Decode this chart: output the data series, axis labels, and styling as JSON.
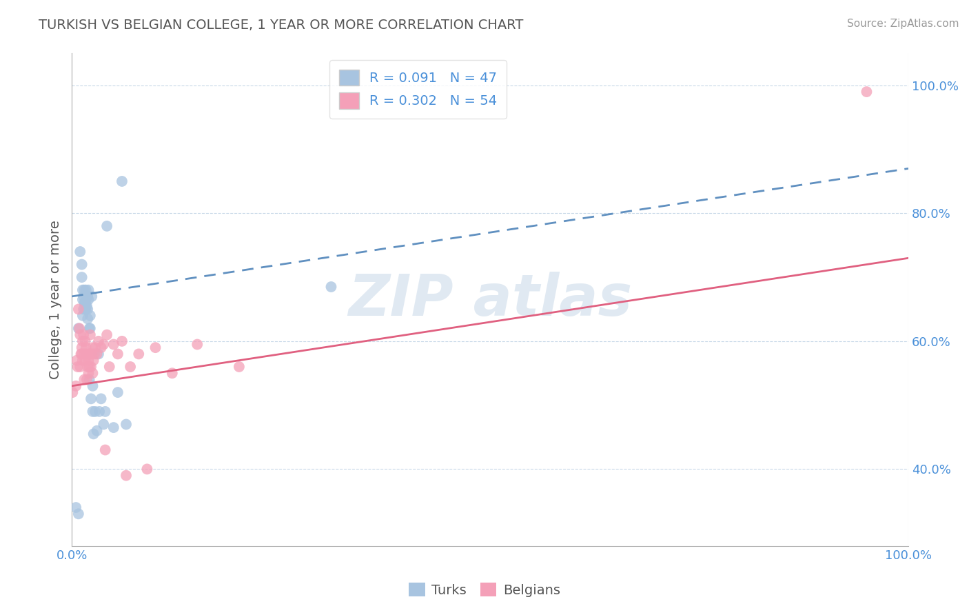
{
  "title": "TURKISH VS BELGIAN COLLEGE, 1 YEAR OR MORE CORRELATION CHART",
  "source": "Source: ZipAtlas.com",
  "ylabel_label": "College, 1 year or more",
  "turks_R": 0.091,
  "turks_N": 47,
  "belgians_R": 0.302,
  "belgians_N": 54,
  "turks_color": "#a8c4e0",
  "belgians_color": "#f4a0b8",
  "turks_line_color": "#6090c0",
  "belgians_line_color": "#e06080",
  "grid_color": "#c8d8e8",
  "turks_line_style": "dashed",
  "belgians_line_style": "solid",
  "turks_line_y0": 0.67,
  "turks_line_y1": 0.87,
  "belgians_line_y0": 0.53,
  "belgians_line_y1": 0.73,
  "turks_x": [
    0.005,
    0.008,
    0.008,
    0.01,
    0.012,
    0.012,
    0.013,
    0.013,
    0.013,
    0.014,
    0.014,
    0.015,
    0.015,
    0.016,
    0.016,
    0.017,
    0.017,
    0.017,
    0.018,
    0.018,
    0.019,
    0.019,
    0.019,
    0.02,
    0.02,
    0.021,
    0.021,
    0.022,
    0.022,
    0.023,
    0.024,
    0.025,
    0.025,
    0.026,
    0.028,
    0.03,
    0.032,
    0.033,
    0.035,
    0.038,
    0.04,
    0.042,
    0.05,
    0.055,
    0.06,
    0.065,
    0.31
  ],
  "turks_y": [
    0.34,
    0.33,
    0.62,
    0.74,
    0.72,
    0.7,
    0.68,
    0.665,
    0.64,
    0.67,
    0.65,
    0.68,
    0.66,
    0.66,
    0.65,
    0.68,
    0.66,
    0.65,
    0.67,
    0.655,
    0.65,
    0.635,
    0.67,
    0.68,
    0.665,
    0.62,
    0.54,
    0.64,
    0.62,
    0.51,
    0.67,
    0.49,
    0.53,
    0.455,
    0.49,
    0.46,
    0.58,
    0.49,
    0.51,
    0.47,
    0.49,
    0.78,
    0.465,
    0.52,
    0.85,
    0.47,
    0.685
  ],
  "belgians_x": [
    0.001,
    0.005,
    0.006,
    0.007,
    0.008,
    0.009,
    0.01,
    0.01,
    0.011,
    0.012,
    0.012,
    0.013,
    0.013,
    0.014,
    0.015,
    0.015,
    0.016,
    0.016,
    0.017,
    0.018,
    0.018,
    0.019,
    0.02,
    0.02,
    0.021,
    0.021,
    0.022,
    0.022,
    0.023,
    0.024,
    0.025,
    0.025,
    0.026,
    0.027,
    0.028,
    0.03,
    0.032,
    0.035,
    0.038,
    0.04,
    0.042,
    0.045,
    0.05,
    0.055,
    0.06,
    0.065,
    0.07,
    0.08,
    0.09,
    0.1,
    0.12,
    0.15,
    0.2,
    0.95
  ],
  "belgians_y": [
    0.52,
    0.53,
    0.57,
    0.56,
    0.65,
    0.62,
    0.56,
    0.61,
    0.58,
    0.59,
    0.58,
    0.6,
    0.57,
    0.61,
    0.58,
    0.54,
    0.6,
    0.57,
    0.59,
    0.54,
    0.58,
    0.56,
    0.57,
    0.55,
    0.58,
    0.56,
    0.61,
    0.58,
    0.56,
    0.58,
    0.59,
    0.55,
    0.57,
    0.58,
    0.59,
    0.58,
    0.6,
    0.59,
    0.595,
    0.43,
    0.61,
    0.56,
    0.595,
    0.58,
    0.6,
    0.39,
    0.56,
    0.58,
    0.4,
    0.59,
    0.55,
    0.595,
    0.56,
    0.99
  ],
  "xlim": [
    0.0,
    1.0
  ],
  "ylim": [
    0.28,
    1.05
  ],
  "yticks": [
    0.4,
    0.6,
    0.8,
    1.0
  ],
  "ytick_labels": [
    "40.0%",
    "60.0%",
    "80.0%",
    "100.0%"
  ],
  "xtick_labels": [
    "0.0%",
    "100.0%"
  ],
  "title_fontsize": 14,
  "source_fontsize": 11,
  "tick_fontsize": 13,
  "label_fontsize": 14,
  "legend_fontsize": 14,
  "watermark_text": "ZIP atlas",
  "watermark_fontsize": 60,
  "watermark_color": "#c8d8e8"
}
